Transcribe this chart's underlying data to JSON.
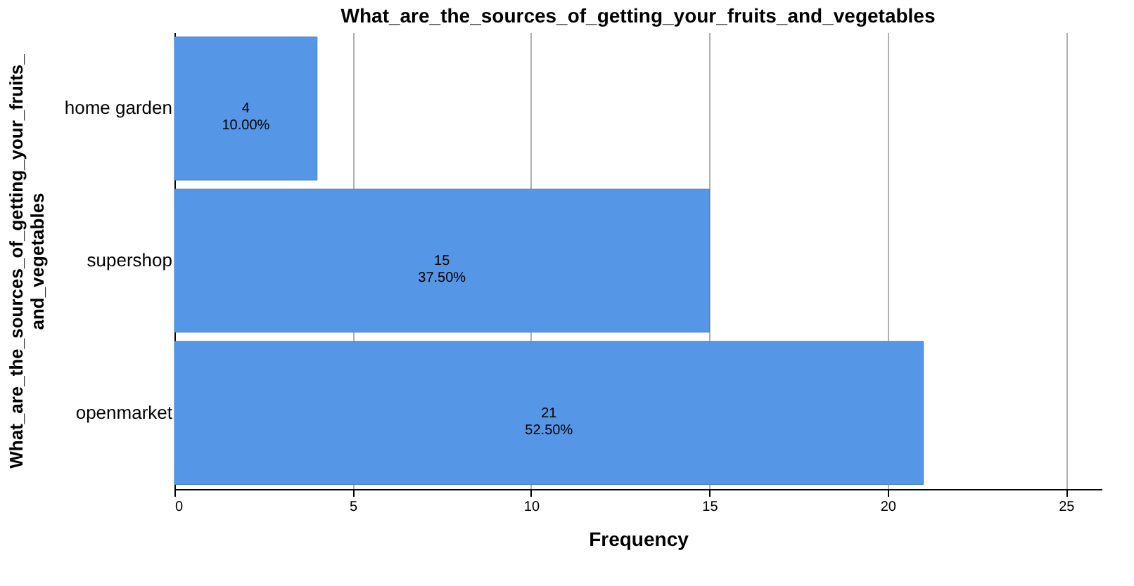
{
  "chart_data": {
    "type": "bar",
    "orientation": "horizontal",
    "title": "What_are_the_sources_of_getting_your_fruits_and_vegetables",
    "xlabel": "Frequency",
    "ylabel": "What_are_the_sources_of_getting_your_fruits_\nand_vegetables",
    "categories": [
      "home garden",
      "supershop",
      "openmarket"
    ],
    "values": [
      4,
      15,
      21
    ],
    "color": "#5596e6",
    "value_labels": [
      "4\n10.00%",
      "15\n37.50%",
      "21\n52.50%"
    ],
    "xlim": [
      0,
      26
    ],
    "xticks": [
      0,
      5,
      10,
      15,
      20,
      25
    ],
    "grid": "x"
  }
}
